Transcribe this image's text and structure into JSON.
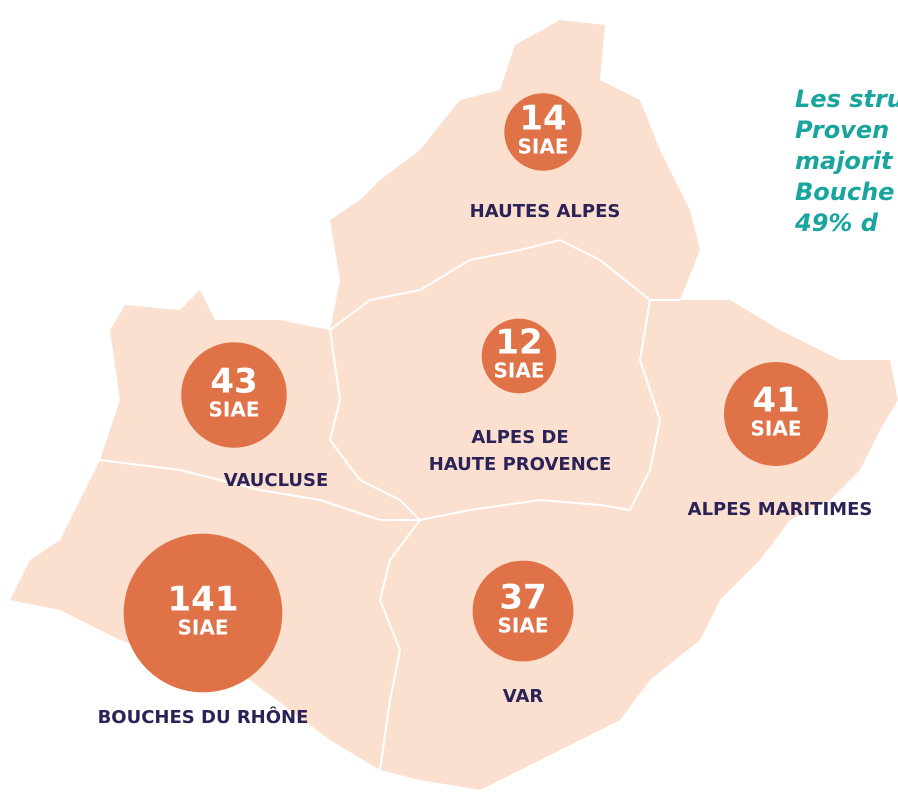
{
  "map": {
    "unit": "SIAE",
    "regions": [
      {
        "name": [
          "HAUTES ALPES"
        ],
        "value": 14
      },
      {
        "name": [
          "VAUCLUSE"
        ],
        "value": 43
      },
      {
        "name": [
          "ALPES DE",
          "HAUTE PROVENCE"
        ],
        "value": 12
      },
      {
        "name": [
          "ALPES MARITIMES"
        ],
        "value": 41
      },
      {
        "name": [
          "BOUCHES DU RHÔNE"
        ],
        "value": 141
      },
      {
        "name": [
          "VAR"
        ],
        "value": 37
      }
    ],
    "note": [
      "Les stru",
      "Proven",
      "majorit",
      "Bouche",
      "49% d"
    ]
  }
}
